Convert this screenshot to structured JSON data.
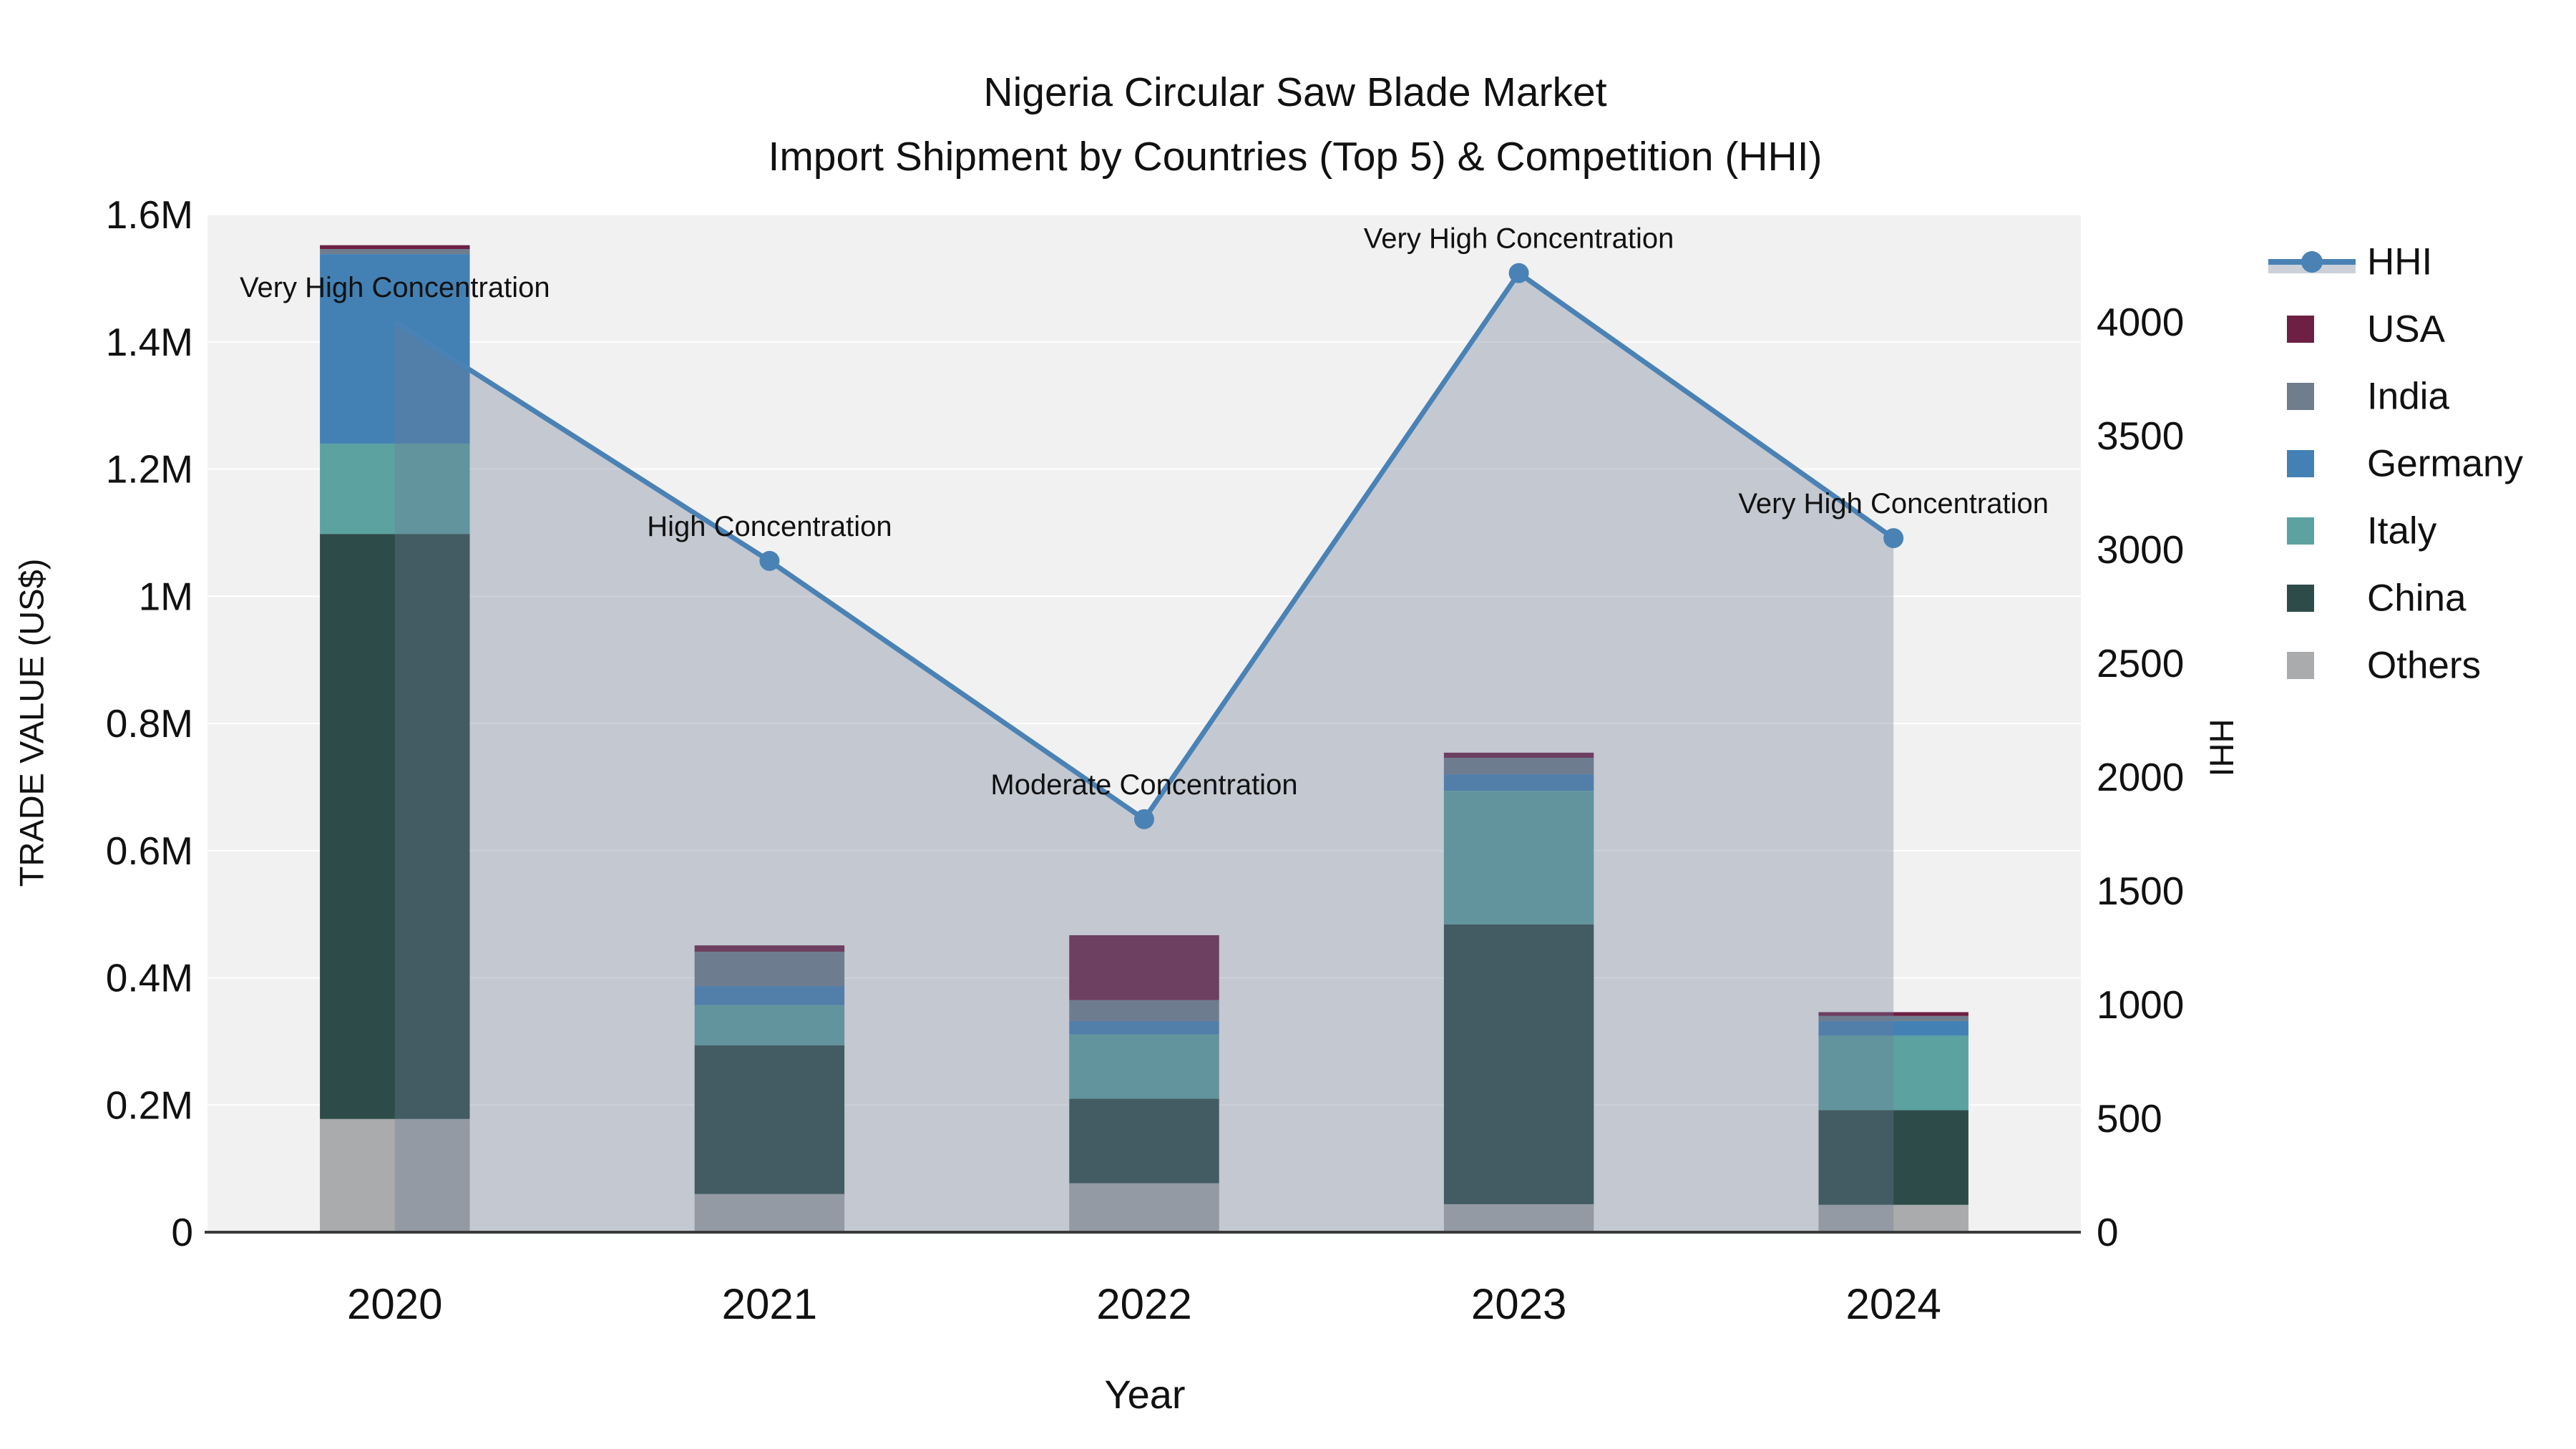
{
  "title": {
    "line1": "Nigeria Circular Saw Blade Market",
    "line2": "Import Shipment by Countries (Top 5) & Competition (HHI)"
  },
  "axes": {
    "x_title": "Year",
    "y_left_title": "TRADE VALUE (US$)",
    "y_right_title": "HHI",
    "y_left_tick_labels": [
      "0",
      "0.2M",
      "0.4M",
      "0.6M",
      "0.8M",
      "1M",
      "1.2M",
      "1.4M",
      "1.6M"
    ],
    "y_right_tick_labels": [
      "0",
      "500",
      "1000",
      "1500",
      "2000",
      "2500",
      "3000",
      "3500",
      "4000"
    ]
  },
  "legend": {
    "items": [
      {
        "name": "HHI",
        "type": "line",
        "color": "#4a82b5",
        "band_color": "#ccd0d9"
      },
      {
        "name": "USA",
        "type": "swatch",
        "color": "#6d2044"
      },
      {
        "name": "India",
        "type": "swatch",
        "color": "#6f7d8c"
      },
      {
        "name": "Germany",
        "type": "swatch",
        "color": "#4381b5"
      },
      {
        "name": "Italy",
        "type": "swatch",
        "color": "#5ba2a0"
      },
      {
        "name": "China",
        "type": "swatch",
        "color": "#2d4c49"
      },
      {
        "name": "Others",
        "type": "swatch",
        "color": "#a9abac"
      }
    ]
  },
  "chart_data": {
    "type": "combo",
    "bar_type": "stacked",
    "title": "Nigeria Circular Saw Blade Market — Import Shipment by Countries (Top 5) & Competition (HHI)",
    "categories": [
      "2020",
      "2021",
      "2022",
      "2023",
      "2024"
    ],
    "xlabel": "Year",
    "ylabel": "TRADE VALUE (US$)",
    "y2label": "HHI",
    "ylim": [
      0,
      1600000
    ],
    "y2lim": [
      0,
      4000
    ],
    "grid": true,
    "legend_position": "right",
    "bar_series_bottom_to_top": [
      {
        "name": "Others",
        "color": "#a9abac",
        "values": [
          178000,
          60000,
          77000,
          44000,
          43000
        ]
      },
      {
        "name": "China",
        "color": "#2d4c49",
        "values": [
          920000,
          234000,
          133000,
          440000,
          149000
        ]
      },
      {
        "name": "Italy",
        "color": "#5ba2a0",
        "values": [
          142000,
          63000,
          101000,
          210000,
          117000
        ]
      },
      {
        "name": "Germany",
        "color": "#4381b5",
        "values": [
          298000,
          30000,
          21000,
          26000,
          23000
        ]
      },
      {
        "name": "India",
        "color": "#6f7d8c",
        "values": [
          8000,
          54000,
          33000,
          26000,
          8000
        ]
      },
      {
        "name": "USA",
        "color": "#6d2044",
        "values": [
          6000,
          10000,
          102000,
          8000,
          6000
        ]
      }
    ],
    "bar_totals": [
      1552000,
      451000,
      467000,
      754000,
      346000
    ],
    "line_series": {
      "name": "HHI",
      "axis": "right",
      "color": "#4a82b5",
      "fill_color_rgba": "rgba(110,122,148,0.35)",
      "values": [
        4000,
        2950,
        1815,
        4215,
        3050
      ]
    },
    "annotations": [
      {
        "x": "2020",
        "text": "Very High Concentration"
      },
      {
        "x": "2021",
        "text": "High Concentration"
      },
      {
        "x": "2022",
        "text": "Moderate Concentration"
      },
      {
        "x": "2023",
        "text": "Very High Concentration"
      },
      {
        "x": "2024",
        "text": "Very High Concentration"
      }
    ]
  },
  "style": {
    "plot_bg": "#f1f1f2",
    "grid_color": "#ffffff",
    "axis_line_color": "#3b3b3b",
    "text_color": "#111111"
  }
}
